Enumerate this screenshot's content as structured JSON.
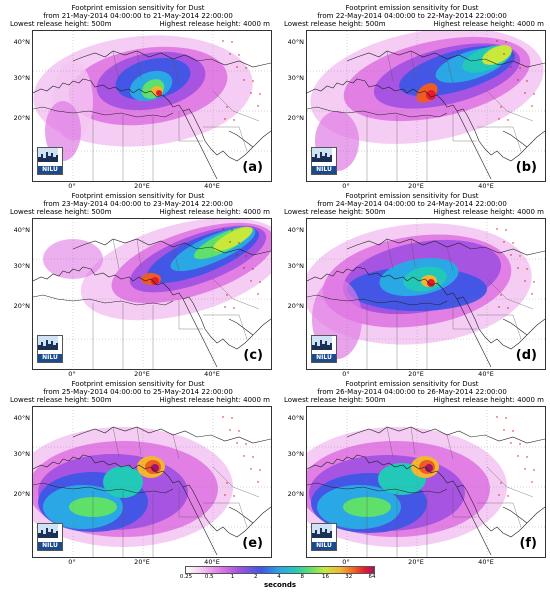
{
  "figure": {
    "common": {
      "title_line1": "Footprint emission sensitivity for Dust",
      "lowest": "Lowest release height: 500m",
      "highest": "Highest release height: 4000 m",
      "logo_text": "NILU",
      "lat_labels": [
        "40°N",
        "30°N",
        "20°N"
      ],
      "lon_labels": [
        "0°",
        "20°E",
        "40°E"
      ]
    },
    "panels": [
      {
        "id": "a",
        "letter": "(a)",
        "range": "from 21-May-2014 04:00:00 to 21-May-2014 22:00:00"
      },
      {
        "id": "b",
        "letter": "(b)",
        "range": "from 22-May-2014 04:00:00 to 22-May-2014 22:00:00"
      },
      {
        "id": "c",
        "letter": "(c)",
        "range": "from 23-May-2014 04:00:00 to 23-May-2014 22:00:00"
      },
      {
        "id": "d",
        "letter": "(d)",
        "range": "from 24-May-2014 04:00:00 to 24-May-2014 22:00:00"
      },
      {
        "id": "e",
        "letter": "(e)",
        "range": "from 25-May-2014 04:00:00 to 25-May-2014 22:00:00"
      },
      {
        "id": "f",
        "letter": "(f)",
        "range": "from 26-May-2014 04:00:00 to 26-May-2014 22:00:00"
      }
    ]
  },
  "colorbar": {
    "ticks": [
      "0.25",
      "0.5",
      "1",
      "2",
      "4",
      "8",
      "16",
      "32",
      "64"
    ],
    "label": "seconds"
  }
}
